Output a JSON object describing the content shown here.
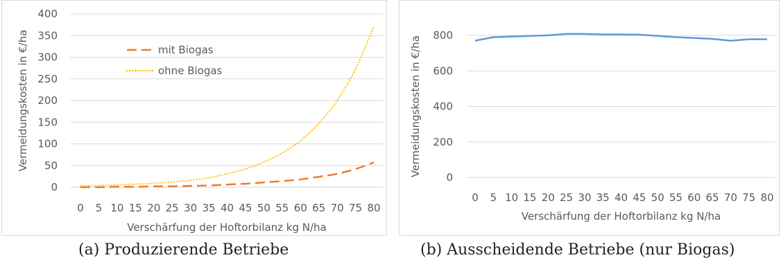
{
  "chart_data": [
    {
      "type": "line",
      "xlabel": "Verschärfung der Hoftorbilanz kg N/ha",
      "ylabel": "Vermeidungskosten in €/ha",
      "x": [
        0,
        5,
        10,
        15,
        20,
        25,
        30,
        35,
        40,
        45,
        50,
        55,
        60,
        65,
        70,
        75,
        80
      ],
      "ylim": [
        0,
        400
      ],
      "yticks": [
        0,
        50,
        100,
        150,
        200,
        250,
        300,
        350,
        400
      ],
      "grid": true,
      "legend": "top-left",
      "series": [
        {
          "name": "mit Biogas",
          "color": "#ED7D31",
          "style": "dashed",
          "values": [
            0,
            0,
            1,
            1,
            2,
            2,
            3,
            4,
            6,
            8,
            11,
            14,
            18,
            24,
            31,
            42,
            57
          ]
        },
        {
          "name": "ohne Biogas",
          "color": "#FFC000",
          "style": "dotted",
          "values": [
            3,
            4,
            5,
            7,
            9,
            12,
            16,
            22,
            31,
            42,
            58,
            79,
            107,
            147,
            200,
            273,
            370
          ]
        }
      ]
    },
    {
      "type": "line",
      "xlabel": "Verschärfung der Hoftorbilanz kg N/ha",
      "ylabel": "Vermeidungskosten  in €/ha",
      "x": [
        0,
        5,
        10,
        15,
        20,
        25,
        30,
        35,
        40,
        45,
        50,
        55,
        60,
        65,
        70,
        75,
        80
      ],
      "ylim": [
        0,
        800
      ],
      "yticks": [
        0,
        200,
        400,
        600,
        800
      ],
      "grid": true,
      "series": [
        {
          "color": "#5B9BD5",
          "style": "solid",
          "values": [
            770,
            790,
            793,
            797,
            800,
            808,
            808,
            805,
            805,
            804,
            797,
            790,
            785,
            780,
            770,
            778,
            778
          ]
        }
      ]
    }
  ],
  "captions": {
    "a": "(a) Produzierende Betriebe",
    "b": "(b) Ausscheidende Betriebe (nur Biogas)"
  }
}
